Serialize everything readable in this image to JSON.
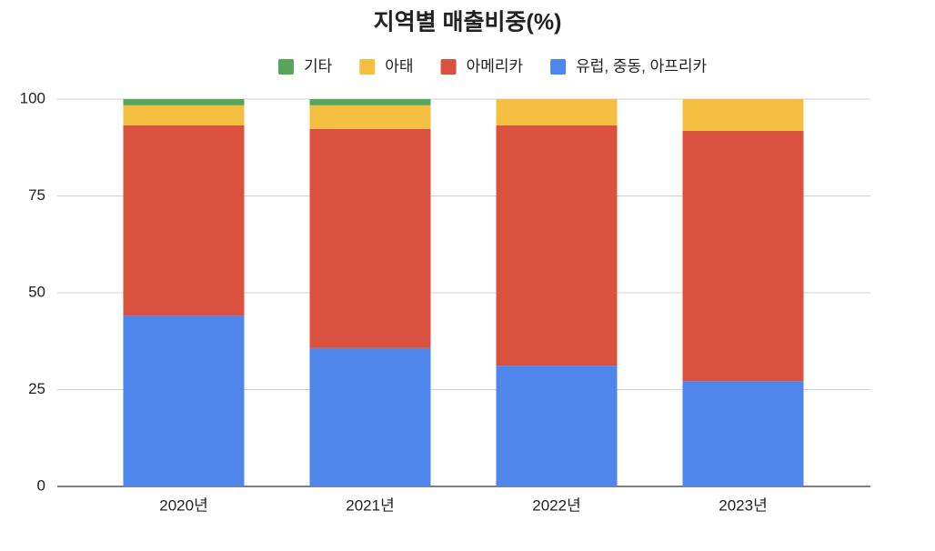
{
  "chart_data": {
    "type": "stacked_bar",
    "title": "지역별 매출비중(%)",
    "categories": [
      "2020년",
      "2021년",
      "2022년",
      "2023년"
    ],
    "series": [
      {
        "name": "기타",
        "color": "#58a55c",
        "values": [
          1.6,
          1.6,
          0,
          0
        ]
      },
      {
        "name": "아태",
        "color": "#f4be41",
        "values": [
          5.2,
          6.1,
          6.8,
          8.2
        ]
      },
      {
        "name": "아메리카",
        "color": "#db5140",
        "values": [
          49.1,
          56.6,
          62.0,
          64.6
        ]
      },
      {
        "name": "유럽, 중동, 아프리카",
        "color": "#4e86ec",
        "values": [
          44.1,
          35.7,
          31.2,
          27.2
        ]
      }
    ],
    "ylim": [
      0,
      100
    ],
    "yticks": [
      0,
      25,
      50,
      75,
      100
    ],
    "grid": true,
    "legend": "top"
  }
}
